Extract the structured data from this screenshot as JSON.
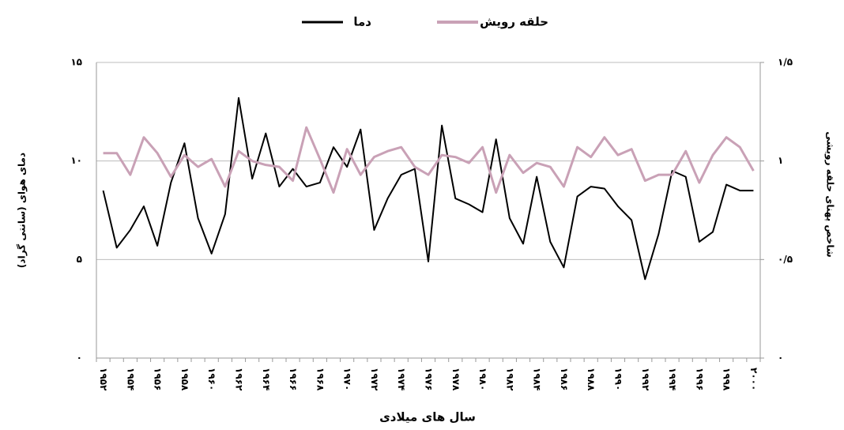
{
  "chart_data": {
    "type": "line",
    "x_label": "سال های میلادی",
    "y_label": "دمای هوای (سانتی گراد)",
    "y2_label": "شاخص پهنای حلقه رویشی",
    "legend": "top",
    "grid": true,
    "categories": [
      "۱۹۵۲",
      null,
      "۱۹۵۴",
      null,
      "۱۹۵۶",
      null,
      "۱۹۵۸",
      null,
      "۱۹۶۰",
      null,
      "۱۹۶۲",
      null,
      "۱۹۶۴",
      null,
      "۱۹۶۶",
      null,
      "۱۹۶۸",
      null,
      "۱۹۷۰",
      null,
      "۱۹۷۲",
      null,
      "۱۹۷۴",
      null,
      "۱۹۷۶",
      null,
      "۱۹۷۸",
      null,
      "۱۹۸۰",
      null,
      "۱۹۸۲",
      null,
      "۱۹۸۴",
      null,
      "۱۹۸۶",
      null,
      "۱۹۸۸",
      null,
      "۱۹۹۰",
      null,
      "۱۹۹۲",
      null,
      "۱۹۹۴",
      null,
      "۱۹۹۶",
      null,
      "۱۹۹۸",
      null,
      "۲۰۰۰"
    ],
    "ylim": [
      0,
      15
    ],
    "yticks": [
      {
        "value": 0,
        "label": "۰"
      },
      {
        "value": 5,
        "label": "۵"
      },
      {
        "value": 10,
        "label": "۱۰"
      },
      {
        "value": 15,
        "label": "۱۵"
      }
    ],
    "y2lim": [
      0,
      1.5
    ],
    "y2ticks": [
      {
        "value": 0,
        "label": "۰"
      },
      {
        "value": 0.5,
        "label": "۰/۵"
      },
      {
        "value": 1,
        "label": "۱"
      },
      {
        "value": 1.5,
        "label": "۱/۵"
      }
    ],
    "series": [
      {
        "name": "دما",
        "color": "#000000",
        "width": 2,
        "values": [
          8.5,
          5.6,
          6.5,
          7.7,
          5.7,
          8.9,
          10.9,
          7.1,
          5.3,
          7.3,
          13.2,
          9.1,
          11.4,
          8.7,
          9.6,
          8.7,
          8.9,
          10.7,
          9.7,
          11.6,
          6.5,
          8.1,
          9.3,
          9.6,
          4.9,
          11.8,
          8.1,
          7.8,
          7.4,
          11.1,
          7.1,
          5.8,
          9.2,
          5.9,
          4.6,
          8.2,
          8.7,
          8.6,
          7.7,
          7.0,
          4.0,
          6.3,
          9.5,
          9.2,
          5.9,
          6.4,
          8.8,
          8.5,
          8.5
        ]
      },
      {
        "name": "حلقه رویش",
        "color": "#c9a1b6",
        "width": 3,
        "axis": "y2",
        "values": [
          1.04,
          1.04,
          0.93,
          1.12,
          1.04,
          0.92,
          1.03,
          0.97,
          1.01,
          0.87,
          1.05,
          1.0,
          0.98,
          0.97,
          0.9,
          1.17,
          1.01,
          0.84,
          1.06,
          0.93,
          1.02,
          1.05,
          1.07,
          0.97,
          0.93,
          1.03,
          1.02,
          0.99,
          1.07,
          0.84,
          1.03,
          0.94,
          0.99,
          0.97,
          0.87,
          1.07,
          1.02,
          1.12,
          1.03,
          1.06,
          0.9,
          0.93,
          0.93,
          1.05,
          0.89,
          1.03,
          1.12,
          1.07,
          0.95
        ]
      }
    ]
  }
}
